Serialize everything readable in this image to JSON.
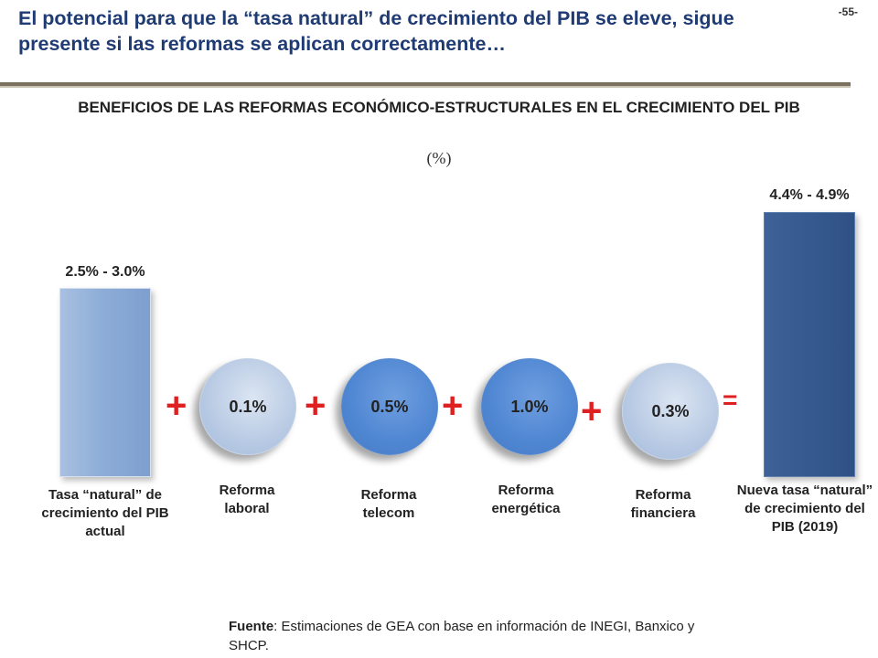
{
  "header": {
    "headline": "El potencial para que la “tasa natural” de crecimiento del PIB se eleve, sigue presente si las reformas se aplican correctamente…",
    "page_number": "-55-"
  },
  "chart_data": {
    "type": "bar",
    "title": "BENEFICIOS DE LAS REFORMAS ECONÓMICO-ESTRUCTURALES EN EL CRECIMIENTO DEL PIB",
    "unit": "(%)",
    "bars": [
      {
        "category": "Tasa “natural” de crecimiento del PIB actual",
        "label": "2.5% - 3.0%",
        "range": [
          2.5,
          3.0
        ]
      },
      {
        "category": "Nueva tasa “natural” de crecimiento del PIB (2019)",
        "label": "4.4% - 4.9%",
        "range": [
          4.4,
          4.9
        ]
      }
    ],
    "components": [
      {
        "category": "Reforma laboral",
        "label": "0.1%",
        "value": 0.1
      },
      {
        "category": "Reforma telecom",
        "label": "0.5%",
        "value": 0.5
      },
      {
        "category": "Reforma energética",
        "label": "1.0%",
        "value": 1.0
      },
      {
        "category": "Reforma financiera",
        "label": "0.3%",
        "value": 0.3
      }
    ],
    "operators": [
      "+",
      "+",
      "+",
      "+",
      "="
    ]
  },
  "source": {
    "label": "Fuente",
    "text": ": Estimaciones de GEA con base en información de INEGI, Banxico y SHCP."
  }
}
